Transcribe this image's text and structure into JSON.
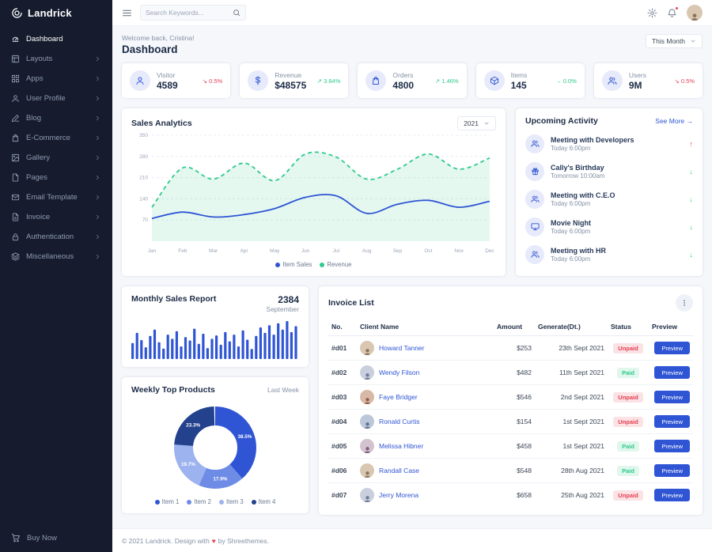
{
  "colors": {
    "primary": "#2f55d4",
    "success": "#2eca8b",
    "danger": "#e43f52",
    "sidebar_bg": "#161c2d",
    "muted": "#8492a6",
    "page_bg": "#f5f7fb"
  },
  "trend_glyphs": {
    "up": "↗",
    "down": "↘",
    "flat": "→"
  },
  "activity_arrow_glyphs": {
    "up": "↑",
    "down": "↓"
  },
  "sidebar": {
    "logo_text": "Landrick",
    "items": [
      {
        "label": "Dashboard",
        "icon": "gauge",
        "active": true,
        "has_children": false
      },
      {
        "label": "Layouts",
        "icon": "layout",
        "active": false,
        "has_children": true
      },
      {
        "label": "Apps",
        "icon": "grid",
        "active": false,
        "has_children": true
      },
      {
        "label": "User Profile",
        "icon": "user",
        "active": false,
        "has_children": true
      },
      {
        "label": "Blog",
        "icon": "edit",
        "active": false,
        "has_children": true
      },
      {
        "label": "E-Commerce",
        "icon": "bag",
        "active": false,
        "has_children": true
      },
      {
        "label": "Gallery",
        "icon": "image",
        "active": false,
        "has_children": true
      },
      {
        "label": "Pages",
        "icon": "file",
        "active": false,
        "has_children": true
      },
      {
        "label": "Email Template",
        "icon": "mail",
        "active": false,
        "has_children": true
      },
      {
        "label": "Invoice",
        "icon": "file-text",
        "active": false,
        "has_children": true
      },
      {
        "label": "Authentication",
        "icon": "lock",
        "active": false,
        "has_children": true
      },
      {
        "label": "Miscellaneous",
        "icon": "layers",
        "active": false,
        "has_children": true
      }
    ],
    "buy_now_label": "Buy Now"
  },
  "topbar": {
    "search_placeholder": "Search Keywords..."
  },
  "page": {
    "welcome": "Welcome back, Cristina!",
    "title": "Dashboard",
    "period_selector": "This Month"
  },
  "stats": [
    {
      "label": "Visitor",
      "value": "4589",
      "trend": "0.5%",
      "direction": "down",
      "icon": "user"
    },
    {
      "label": "Revenue",
      "value": "$48575",
      "trend": "3.84%",
      "direction": "up",
      "icon": "dollar"
    },
    {
      "label": "Orders",
      "value": "4800",
      "trend": "1.46%",
      "direction": "up",
      "icon": "bag"
    },
    {
      "label": "Items",
      "value": "145",
      "trend": "0.0%",
      "direction": "flat",
      "icon": "box"
    },
    {
      "label": "Users",
      "value": "9M",
      "trend": "0.5%",
      "direction": "down",
      "icon": "users"
    }
  ],
  "sales_analytics": {
    "title": "Sales Analytics",
    "year_selector": "2021",
    "chart": {
      "type": "line",
      "x": [
        "Jan",
        "Feb",
        "Mar",
        "Apr",
        "May",
        "Jun",
        "Jul",
        "Aug",
        "Sep",
        "Oct",
        "Nov",
        "Dec"
      ],
      "y_ticks": [
        70,
        140,
        210,
        280,
        350
      ],
      "ylim": [
        0,
        350
      ],
      "legend_position": "bottom",
      "series": [
        {
          "name": "Item Sales",
          "color": "#2f55d4",
          "style": "solid",
          "values": [
            75,
            96,
            80,
            88,
            108,
            145,
            150,
            92,
            122,
            135,
            112,
            132
          ]
        },
        {
          "name": "Revenue",
          "color": "#2eca8b",
          "style": "dashed-area",
          "values": [
            112,
            242,
            205,
            258,
            200,
            288,
            278,
            205,
            238,
            288,
            238,
            275
          ]
        }
      ]
    }
  },
  "upcoming_activity": {
    "title": "Upcoming Activity",
    "see_more": "See More →",
    "items": [
      {
        "title": "Meeting with Developers",
        "time": "Today 6:00pm",
        "icon": "users",
        "arrow": "up",
        "arrow_color": "#e43f52"
      },
      {
        "title": "Cally's Birthday",
        "time": "Tomorrow 10:00am",
        "icon": "gift",
        "arrow": "down",
        "arrow_color": "#2eca8b"
      },
      {
        "title": "Meeting with C.E.O",
        "time": "Today 6:00pm",
        "icon": "users",
        "arrow": "down",
        "arrow_color": "#2eca8b"
      },
      {
        "title": "Movie Night",
        "time": "Today 6:00pm",
        "icon": "monitor",
        "arrow": "down",
        "arrow_color": "#2eca8b"
      },
      {
        "title": "Meeting with HR",
        "time": "Today 6:00pm",
        "icon": "users",
        "arrow": "down",
        "arrow_color": "#2eca8b"
      }
    ]
  },
  "monthly_sales": {
    "title": "Monthly Sales Report",
    "value": "2384",
    "period": "September",
    "chart": {
      "type": "bar",
      "color": "#2f55d4",
      "values": [
        38,
        62,
        45,
        28,
        55,
        70,
        40,
        25,
        58,
        48,
        66,
        30,
        52,
        44,
        72,
        36,
        60,
        26,
        48,
        56,
        34,
        64,
        42,
        58,
        30,
        68,
        46,
        24,
        55,
        75,
        62,
        80,
        58,
        85,
        70,
        90,
        64,
        78
      ]
    }
  },
  "weekly_products": {
    "title": "Weekly Top Products",
    "period": "Last Week",
    "chart": {
      "type": "donut",
      "segments": [
        {
          "label": "Item 1",
          "value": 38.5,
          "color": "#2f55d4"
        },
        {
          "label": "Item 2",
          "value": 17.9,
          "color": "#6e8ce6"
        },
        {
          "label": "Item 3",
          "value": 19.7,
          "color": "#9db3ef"
        },
        {
          "label": "Item 4",
          "value": 23.3,
          "color": "#23418c"
        }
      ]
    }
  },
  "invoice_list": {
    "title": "Invoice List",
    "columns": [
      "No.",
      "Client Name",
      "Amount",
      "Generate(Dt.)",
      "Status",
      "Preview"
    ],
    "preview_label": "Preview",
    "rows": [
      {
        "no": "#d01",
        "client": "Howard Tanner",
        "amount": "$253",
        "date": "23th Sept 2021",
        "status": "Unpaid"
      },
      {
        "no": "#d02",
        "client": "Wendy Filson",
        "amount": "$482",
        "date": "11th Sept 2021",
        "status": "Paid"
      },
      {
        "no": "#d03",
        "client": "Faye Bridger",
        "amount": "$546",
        "date": "2nd Sept 2021",
        "status": "Unpaid"
      },
      {
        "no": "#d04",
        "client": "Ronald Curtis",
        "amount": "$154",
        "date": "1st Sept 2021",
        "status": "Unpaid"
      },
      {
        "no": "#d05",
        "client": "Melissa Hibner",
        "amount": "$458",
        "date": "1st Sept 2021",
        "status": "Paid"
      },
      {
        "no": "#d06",
        "client": "Randall Case",
        "amount": "$548",
        "date": "28th Aug 2021",
        "status": "Paid"
      },
      {
        "no": "#d07",
        "client": "Jerry Morena",
        "amount": "$658",
        "date": "25th Aug 2021",
        "status": "Unpaid"
      }
    ]
  },
  "footer": {
    "text_prefix": "© 2021 Landrick. Design with",
    "heart": "♥",
    "text_suffix": "by Shreethemes."
  }
}
